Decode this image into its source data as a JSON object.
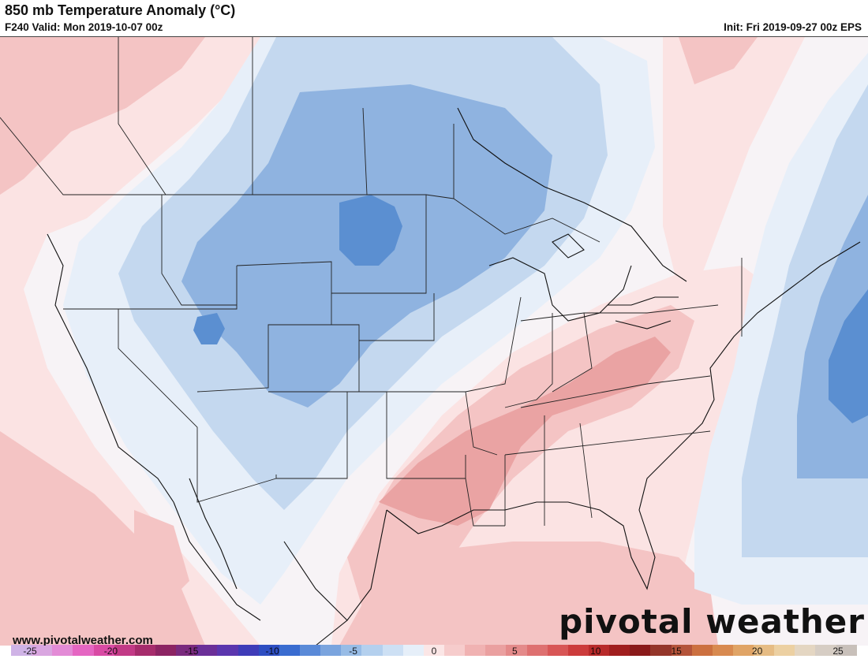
{
  "header": {
    "title": "850 mb Temperature Anomaly (°C)",
    "subtitle": "F240 Valid: Mon 2019-10-07 00z",
    "init": "Init: Fri 2019-09-27 00z EPS"
  },
  "footer": {
    "url": "www.pivotalweather.com",
    "logo": "pivotal weather"
  },
  "colorbar": {
    "labels": [
      "-25",
      "-20",
      "-15",
      "-10",
      "-5",
      "0",
      "5",
      "10",
      "15",
      "20",
      "25"
    ],
    "colors": [
      "#cfb3e6",
      "#d9a6e0",
      "#e38bd6",
      "#e566c2",
      "#d94aa4",
      "#c23a86",
      "#a62c6c",
      "#8c2463",
      "#7a2a7e",
      "#6b2f98",
      "#5b36ae",
      "#3f3cb8",
      "#2e4ec2",
      "#3a6cd0",
      "#5a8ad8",
      "#7aa4de",
      "#98bce6",
      "#b4d0ee",
      "#cde0f4",
      "#e6eff9",
      "#fbe6e6",
      "#f6cccc",
      "#f0b2b2",
      "#eaa0a0",
      "#e48a8a",
      "#de7070",
      "#d85656",
      "#cc3c3c",
      "#b82a2a",
      "#a01e1e",
      "#8a1a1a",
      "#94362a",
      "#b4543a",
      "#cc7040",
      "#d88a50",
      "#e0a466",
      "#e6bc84",
      "#ecd0a2",
      "#e4d6c2",
      "#d6cdc4",
      "#c8c0ba"
    ]
  },
  "map": {
    "colors": {
      "cold3": "#5b8fd1",
      "cold2": "#8fb3e0",
      "cold1": "#c4d8ef",
      "cool": "#e7eff9",
      "neutral": "#f7f3f6",
      "warm1": "#fbe3e3",
      "warm2": "#f4c4c4",
      "warm3": "#eaa3a3"
    }
  }
}
